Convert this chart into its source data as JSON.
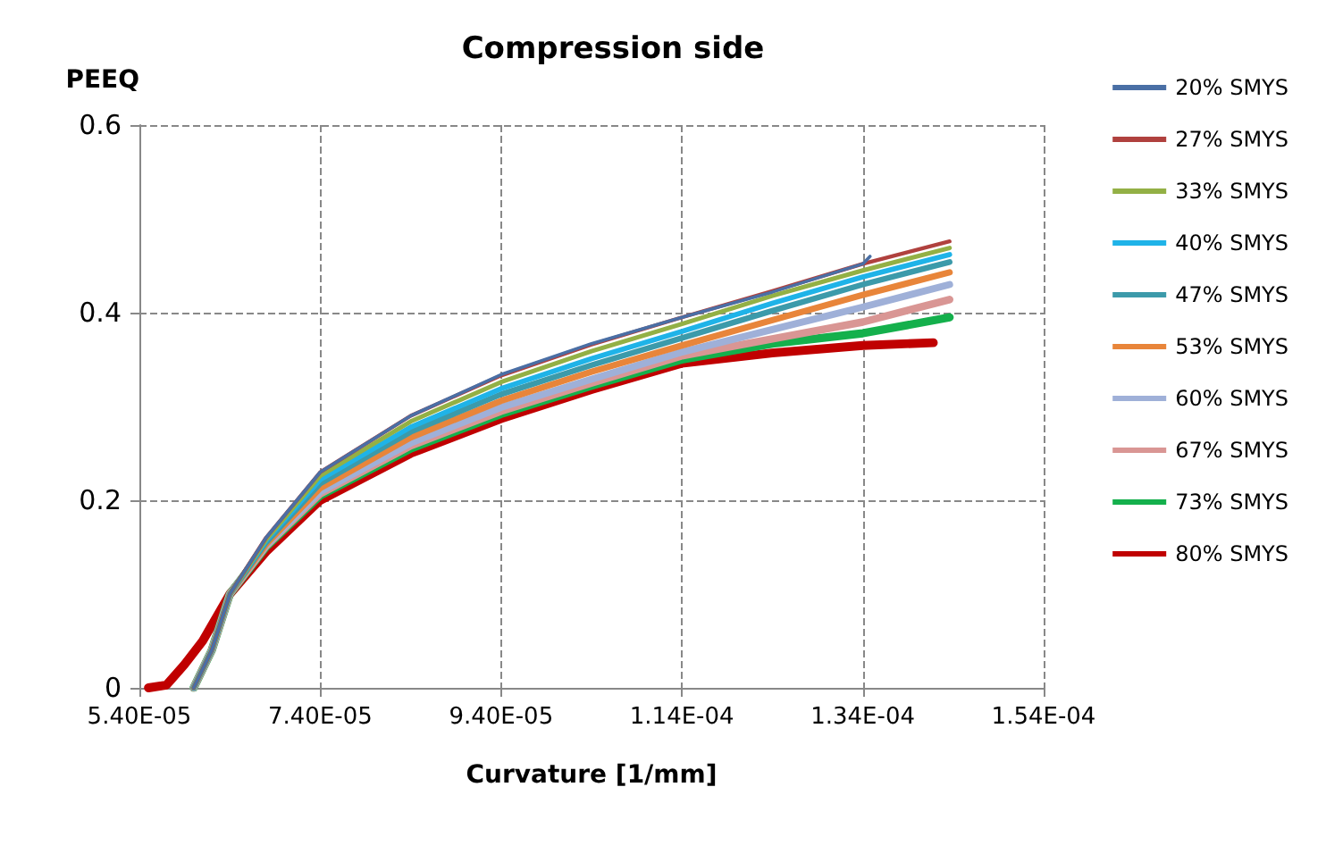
{
  "chart_data": {
    "type": "line",
    "title": "Compression side",
    "xlabel": "Curvature [1/mm]",
    "ylabel": "PEEQ",
    "x": [
      6e-05,
      6.2e-05,
      6.4e-05,
      6.8e-05,
      7.4e-05,
      8.4e-05,
      9.4e-05,
      0.000104,
      0.000114,
      0.000124,
      0.000134,
      0.0001436
    ],
    "series": [
      {
        "name": "20% SMYS",
        "color": "#4a6fa5",
        "x": [
          6e-05,
          6.2e-05,
          6.4e-05,
          6.8e-05,
          7.4e-05,
          8.4e-05,
          9.4e-05,
          0.000104,
          0.000114,
          0.000124,
          0.000134,
          0.0001348
        ],
        "values": [
          0,
          0.04,
          0.1,
          0.16,
          0.23,
          0.29,
          0.334,
          0.367,
          0.395,
          0.422,
          0.452,
          0.46
        ]
      },
      {
        "name": "27% SMYS",
        "color": "#b0413e",
        "values": [
          0,
          0.04,
          0.1,
          0.16,
          0.23,
          0.29,
          0.333,
          0.366,
          0.395,
          0.423,
          0.452,
          0.476
        ]
      },
      {
        "name": "33% SMYS",
        "color": "#93b045",
        "values": [
          0,
          0.04,
          0.1,
          0.158,
          0.226,
          0.284,
          0.326,
          0.359,
          0.388,
          0.418,
          0.445,
          0.469
        ]
      },
      {
        "name": "40% SMYS",
        "color": "#1fb3e8",
        "values": [
          0,
          0.04,
          0.1,
          0.157,
          0.222,
          0.278,
          0.319,
          0.351,
          0.38,
          0.41,
          0.438,
          0.462
        ]
      },
      {
        "name": "47% SMYS",
        "color": "#3c9aaa",
        "values": [
          0,
          0.04,
          0.1,
          0.155,
          0.218,
          0.273,
          0.313,
          0.344,
          0.373,
          0.402,
          0.43,
          0.454
        ]
      },
      {
        "name": "53% SMYS",
        "color": "#e8853a",
        "values": [
          0,
          0.04,
          0.1,
          0.153,
          0.213,
          0.267,
          0.306,
          0.337,
          0.365,
          0.392,
          0.419,
          0.443
        ]
      },
      {
        "name": "60% SMYS",
        "color": "#9fb0d8",
        "values": [
          0,
          0.04,
          0.1,
          0.152,
          0.209,
          0.261,
          0.299,
          0.329,
          0.358,
          0.382,
          0.406,
          0.43
        ]
      },
      {
        "name": "67% SMYS",
        "color": "#d99694",
        "values": [
          0,
          0.04,
          0.1,
          0.151,
          0.207,
          0.258,
          0.295,
          0.325,
          0.354,
          0.372,
          0.39,
          0.414
        ]
      },
      {
        "name": "73% SMYS",
        "color": "#14b04c",
        "values": [
          0,
          0.04,
          0.1,
          0.15,
          0.205,
          0.255,
          0.292,
          0.322,
          0.35,
          0.367,
          0.378,
          0.395
        ]
      },
      {
        "name": "80% SMYS",
        "color": "#c00000",
        "x": [
          5.5e-05,
          5.7e-05,
          5.9e-05,
          6.1e-05,
          6.4e-05,
          6.8e-05,
          7.4e-05,
          8.4e-05,
          9.4e-05,
          0.000104,
          0.000114,
          0.000124,
          0.000134,
          0.0001418
        ],
        "values": [
          0,
          0.003,
          0.025,
          0.05,
          0.1,
          0.145,
          0.2,
          0.25,
          0.287,
          0.318,
          0.346,
          0.357,
          0.365,
          0.368
        ]
      }
    ],
    "xlim": [
      5.4e-05,
      0.000154
    ],
    "xticks": [
      {
        "value": 5.4e-05,
        "label": "5.40E-05"
      },
      {
        "value": 7.4e-05,
        "label": "7.40E-05"
      },
      {
        "value": 9.4e-05,
        "label": "9.40E-05"
      },
      {
        "value": 0.000114,
        "label": "1.14E-04"
      },
      {
        "value": 0.000134,
        "label": "1.34E-04"
      },
      {
        "value": 0.000154,
        "label": "1.54E-04"
      }
    ],
    "ylim": [
      0,
      0.6
    ],
    "yticks": [
      0,
      0.2,
      0.4,
      0.6
    ],
    "grid": true,
    "legend": "right",
    "marker": "none",
    "line_style": "solid"
  }
}
